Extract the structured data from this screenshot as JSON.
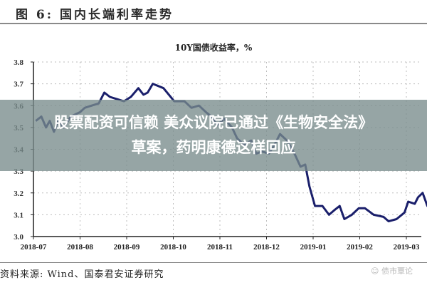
{
  "figure": {
    "title": "图 6:  国内长端利率走势",
    "source": "资料来源:  Wind、国泰君安证券研究",
    "watermark": "债市覃论"
  },
  "overlay": {
    "headline_line1": "股票配资可信赖 美众议院已通过《生物安全法》",
    "headline_line2": "草案，药明康德这样回应",
    "background": "#788c8c"
  },
  "chart_data": {
    "type": "line",
    "title": "10Y国债收益率，%",
    "xlabel": "",
    "ylabel": "",
    "ylim": [
      3.0,
      3.8
    ],
    "yticks": [
      "3.0",
      "3.1",
      "3.2",
      "3.3",
      "3.4",
      "3.5",
      "3.6",
      "3.7",
      "3.8"
    ],
    "xticks": [
      "2018-07",
      "2018-08",
      "2018-09",
      "2018-10",
      "2018-11",
      "2018-12",
      "2019-01",
      "2019-02",
      "2019-03"
    ],
    "grid": true,
    "legend": "none",
    "line_color": "#1a1f6b",
    "series": [
      {
        "name": "10Y国债收益率",
        "x": [
          0.05,
          0.17,
          0.27,
          0.35,
          0.44,
          0.53,
          0.65,
          0.8,
          1.0,
          1.1,
          1.25,
          1.4,
          1.52,
          1.64,
          1.79,
          1.94,
          2.09,
          2.25,
          2.36,
          2.45,
          2.56,
          2.79,
          3.02,
          3.12,
          3.24,
          3.39,
          3.55,
          3.7,
          3.82,
          3.94,
          4.09,
          4.26,
          4.37,
          4.52,
          4.67,
          4.78,
          4.9,
          5.05,
          5.17,
          5.29,
          5.44,
          5.6,
          5.73,
          5.83,
          5.92,
          6.04,
          6.2,
          6.34,
          6.45,
          6.57,
          6.67,
          6.83,
          6.98,
          7.11,
          7.3,
          7.51,
          7.62,
          7.79,
          7.96,
          8.04,
          8.18,
          8.25,
          8.35,
          8.45,
          8.6
        ],
        "values": [
          3.53,
          3.55,
          3.5,
          3.53,
          3.48,
          3.53,
          3.5,
          3.55,
          3.57,
          3.59,
          3.6,
          3.61,
          3.66,
          3.64,
          3.63,
          3.62,
          3.64,
          3.68,
          3.65,
          3.66,
          3.7,
          3.68,
          3.62,
          3.62,
          3.62,
          3.59,
          3.6,
          3.57,
          3.55,
          3.51,
          3.54,
          3.5,
          3.45,
          3.42,
          3.44,
          3.38,
          3.39,
          3.38,
          3.42,
          3.47,
          3.44,
          3.38,
          3.32,
          3.33,
          3.23,
          3.14,
          3.14,
          3.1,
          3.12,
          3.14,
          3.08,
          3.1,
          3.13,
          3.13,
          3.1,
          3.09,
          3.07,
          3.08,
          3.11,
          3.16,
          3.15,
          3.18,
          3.2,
          3.14,
          3.14
        ]
      }
    ]
  }
}
